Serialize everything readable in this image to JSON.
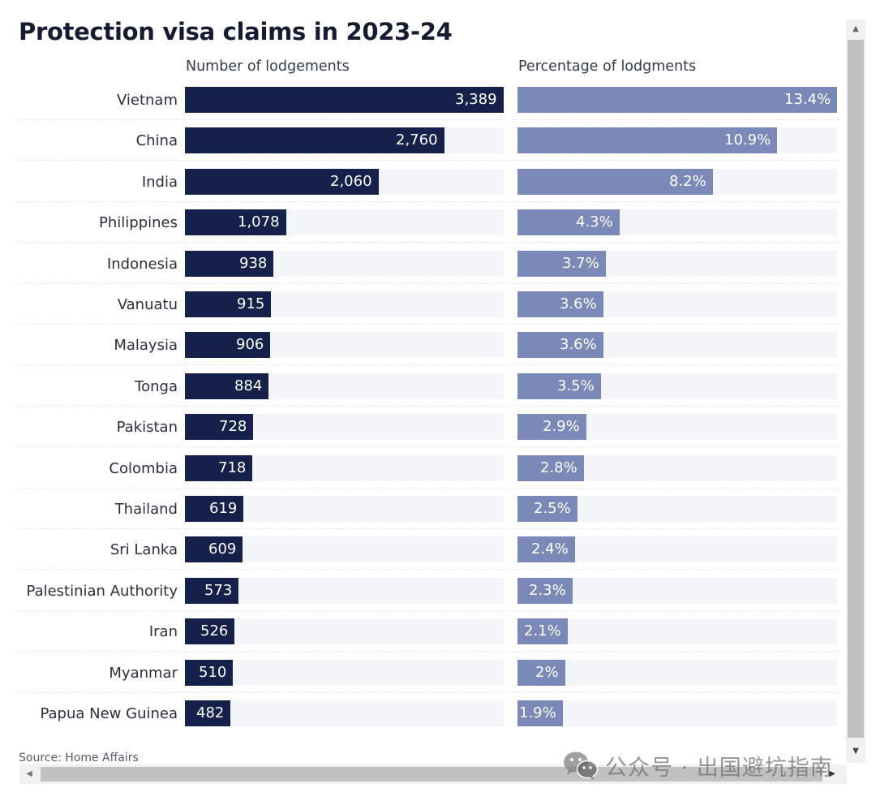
{
  "title": "Protection visa claims in 2023-24",
  "source": "Source: Home Affairs",
  "watermark": {
    "icon": "wechat-icon",
    "text": "公众号 · 出国避坑指南"
  },
  "colors": {
    "count_bar": "#15214a",
    "percent_bar": "#7b89b8",
    "track": "#f4f5f8"
  },
  "scrollbars": {
    "vertical": {
      "up_icon": "▲",
      "down_icon": "▼"
    },
    "horizontal": {
      "left_icon": "◀",
      "right_icon": "▶"
    }
  },
  "chart_data": {
    "type": "bar",
    "orientation": "horizontal",
    "title": "Protection visa claims in 2023-24",
    "categories": [
      "Vietnam",
      "China",
      "India",
      "Philippines",
      "Indonesia",
      "Vanuatu",
      "Malaysia",
      "Tonga",
      "Pakistan",
      "Colombia",
      "Thailand",
      "Sri Lanka",
      "Palestinian Authority",
      "Iran",
      "Myanmar",
      "Papua New Guinea"
    ],
    "series": [
      {
        "name": "Number of lodgements",
        "values": [
          3389,
          2760,
          2060,
          1078,
          938,
          915,
          906,
          884,
          728,
          718,
          619,
          609,
          573,
          526,
          510,
          482
        ],
        "labels": [
          "3,389",
          "2,760",
          "2,060",
          "1,078",
          "938",
          "915",
          "906",
          "884",
          "728",
          "718",
          "619",
          "609",
          "573",
          "526",
          "510",
          "482"
        ],
        "max": 3389
      },
      {
        "name": "Percentage of lodgments",
        "values": [
          13.4,
          10.9,
          8.2,
          4.3,
          3.7,
          3.6,
          3.6,
          3.5,
          2.9,
          2.8,
          2.5,
          2.4,
          2.3,
          2.1,
          2.0,
          1.9
        ],
        "labels": [
          "13.4%",
          "10.9%",
          "8.2%",
          "4.3%",
          "3.7%",
          "3.6%",
          "3.6%",
          "3.5%",
          "2.9%",
          "2.8%",
          "2.5%",
          "2.4%",
          "2.3%",
          "2.1%",
          "2%",
          "1.9%"
        ],
        "max": 13.4
      }
    ],
    "xlabel": "",
    "ylabel": "",
    "grid": false,
    "legend": "none"
  }
}
